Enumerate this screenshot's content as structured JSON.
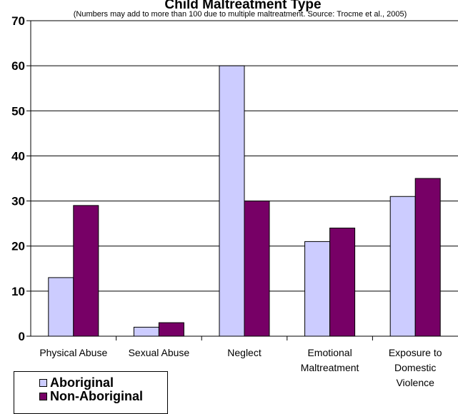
{
  "chart_data": {
    "type": "bar",
    "title": "Child Maltreatment Type",
    "subtitle": "(Numbers may add to more than 100 due to multiple maltreatment.  Source: Trocme et al., 2005)",
    "categories": [
      [
        "Physical Abuse"
      ],
      [
        "Sexual Abuse"
      ],
      [
        "Neglect"
      ],
      [
        "Emotional",
        "Maltreatment"
      ],
      [
        "Exposure to",
        "Domestic",
        "Violence"
      ]
    ],
    "series": [
      {
        "name": "Aboriginal",
        "values": [
          13,
          2,
          60,
          21,
          31
        ],
        "color": "#ccccff"
      },
      {
        "name": "Non-Aboriginal",
        "values": [
          29,
          3,
          30,
          24,
          35
        ],
        "color": "#770066"
      }
    ],
    "ylim": [
      0,
      70
    ],
    "yticks": [
      0,
      10,
      20,
      30,
      40,
      50,
      60,
      70
    ],
    "grid": true,
    "legend_position": "bottom-left",
    "xlabel": "",
    "ylabel": ""
  }
}
